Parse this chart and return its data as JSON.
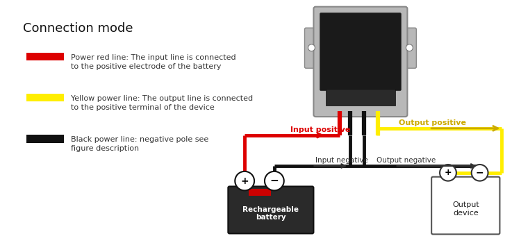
{
  "title": "Connection mode",
  "bg_color": "#ffffff",
  "legend_items": [
    {
      "color": "#dd0000",
      "label1": "Power red line: The input line is connected",
      "label2": "to the positive electrode of the battery"
    },
    {
      "color": "#ffee00",
      "label1": "Yellow power line: The output line is connected",
      "label2": "to the positive terminal of the device"
    },
    {
      "color": "#111111",
      "label1": "Black power line: negative pole see",
      "label2": "figure description"
    }
  ],
  "input_positive_label": "Input positive",
  "output_positive_label": "Output positive",
  "input_negative_label": "Input negative",
  "output_negative_label": "Output negative",
  "battery_label": "Rechargeable\nbattery",
  "output_device_label": "Output\ndevice",
  "wire_lw": 3.5
}
